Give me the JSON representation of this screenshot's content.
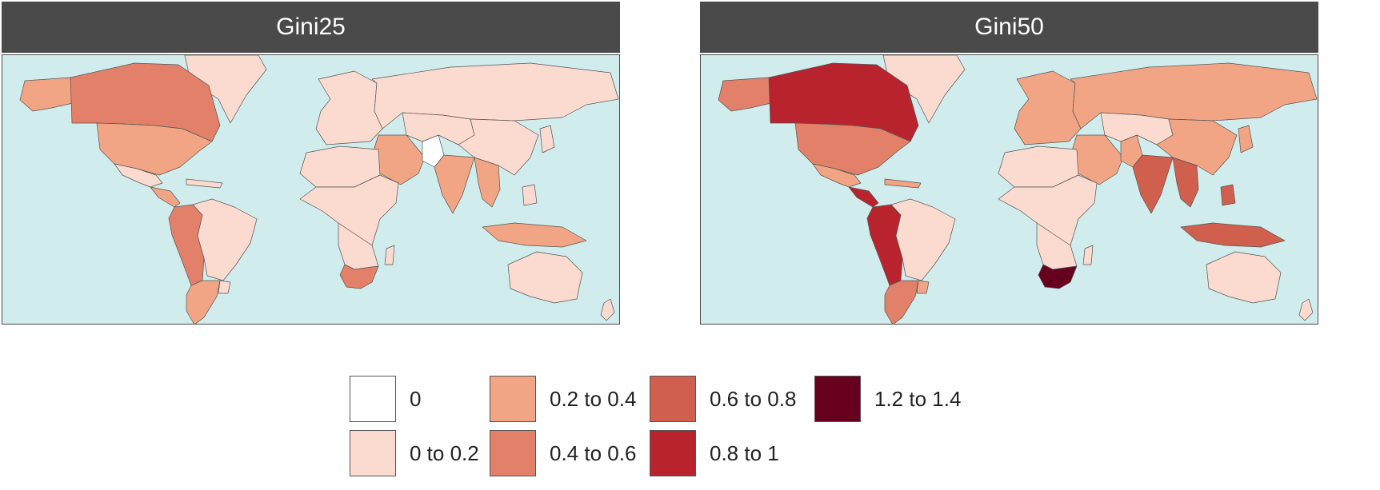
{
  "panels": [
    {
      "title": "Gini25",
      "regions": {
        "greenland": 1,
        "alaska": 2,
        "canada": 3,
        "usa": 2,
        "mexico": 1,
        "central_america": 2,
        "caribbean": 1,
        "west_south_america": 3,
        "brazil": 1,
        "southern_cone": 2,
        "uruguay": 1,
        "europe": 1,
        "middle_east": 2,
        "north_africa": 1,
        "sub_saharan_africa": 1,
        "southern_africa": 1,
        "south_africa": 3,
        "madagascar": 1,
        "pakistan": 0,
        "india": 2,
        "southeast_asia": 2,
        "indonesia": 2,
        "philippines": 1,
        "russia": 1,
        "central_asia": 1,
        "china": 1,
        "japan": 1,
        "australia": 1,
        "new_zealand": 1
      }
    },
    {
      "title": "Gini50",
      "regions": {
        "greenland": 1,
        "alaska": 3,
        "canada": 5,
        "usa": 3,
        "mexico": 2,
        "central_america": 5,
        "caribbean": 2,
        "west_south_america": 5,
        "brazil": 1,
        "southern_cone": 3,
        "uruguay": 2,
        "europe": 2,
        "middle_east": 2,
        "north_africa": 1,
        "sub_saharan_africa": 1,
        "southern_africa": 1,
        "south_africa": 6,
        "madagascar": 1,
        "pakistan": 2,
        "india": 4,
        "southeast_asia": 4,
        "indonesia": 4,
        "philippines": 4,
        "russia": 2,
        "central_asia": 1,
        "china": 2,
        "japan": 2,
        "australia": 1,
        "new_zealand": 1
      }
    }
  ],
  "ocean_color": "#d0ecec",
  "legend": [
    {
      "label": "0",
      "color": "#ffffff"
    },
    {
      "label": "0 to 0.2",
      "color": "#fbdad0"
    },
    {
      "label": "0.2 to 0.4",
      "color": "#f2a584"
    },
    {
      "label": "0.4 to 0.6",
      "color": "#e3806a"
    },
    {
      "label": "0.6 to 0.8",
      "color": "#d15f4d"
    },
    {
      "label": "0.8 to 1",
      "color": "#b8232e"
    },
    {
      "label": "1.2 to 1.4",
      "color": "#67001f"
    }
  ]
}
